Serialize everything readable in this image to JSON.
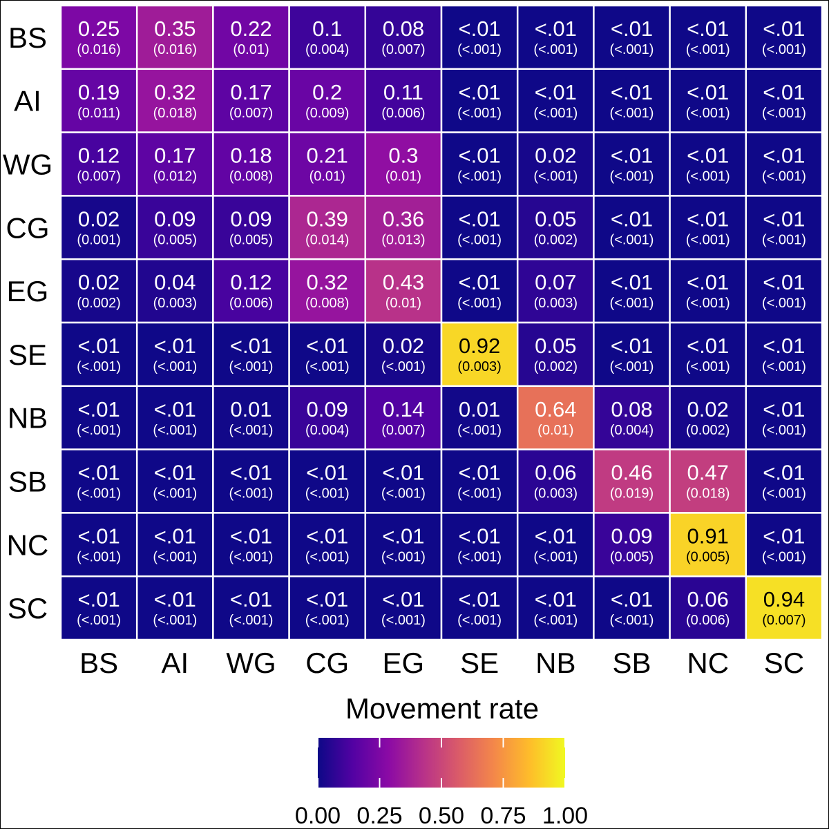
{
  "chart_data": {
    "type": "heatmap",
    "title": "",
    "xlabel": "",
    "ylabel": "",
    "x_categories": [
      "BS",
      "AI",
      "WG",
      "CG",
      "EG",
      "SE",
      "NB",
      "SB",
      "NC",
      "SC"
    ],
    "y_categories": [
      "BS",
      "AI",
      "WG",
      "CG",
      "EG",
      "SE",
      "NB",
      "SB",
      "NC",
      "SC"
    ],
    "values": [
      [
        0.25,
        0.35,
        0.22,
        0.1,
        0.08,
        0.005,
        0.005,
        0.005,
        0.005,
        0.005
      ],
      [
        0.19,
        0.32,
        0.17,
        0.2,
        0.11,
        0.005,
        0.005,
        0.005,
        0.005,
        0.005
      ],
      [
        0.12,
        0.17,
        0.18,
        0.21,
        0.3,
        0.005,
        0.02,
        0.005,
        0.005,
        0.005
      ],
      [
        0.02,
        0.09,
        0.09,
        0.39,
        0.36,
        0.005,
        0.05,
        0.005,
        0.005,
        0.005
      ],
      [
        0.02,
        0.04,
        0.12,
        0.32,
        0.43,
        0.005,
        0.07,
        0.005,
        0.005,
        0.005
      ],
      [
        0.005,
        0.005,
        0.005,
        0.005,
        0.02,
        0.92,
        0.05,
        0.005,
        0.005,
        0.005
      ],
      [
        0.005,
        0.005,
        0.01,
        0.09,
        0.14,
        0.01,
        0.64,
        0.08,
        0.02,
        0.005
      ],
      [
        0.005,
        0.005,
        0.005,
        0.005,
        0.005,
        0.005,
        0.06,
        0.46,
        0.47,
        0.005
      ],
      [
        0.005,
        0.005,
        0.005,
        0.005,
        0.005,
        0.005,
        0.005,
        0.09,
        0.91,
        0.005
      ],
      [
        0.005,
        0.005,
        0.005,
        0.005,
        0.005,
        0.005,
        0.005,
        0.005,
        0.06,
        0.94
      ]
    ],
    "value_labels": [
      [
        "0.25",
        "0.35",
        "0.22",
        "0.1",
        "0.08",
        "<.01",
        "<.01",
        "<.01",
        "<.01",
        "<.01"
      ],
      [
        "0.19",
        "0.32",
        "0.17",
        "0.2",
        "0.11",
        "<.01",
        "<.01",
        "<.01",
        "<.01",
        "<.01"
      ],
      [
        "0.12",
        "0.17",
        "0.18",
        "0.21",
        "0.3",
        "<.01",
        "0.02",
        "<.01",
        "<.01",
        "<.01"
      ],
      [
        "0.02",
        "0.09",
        "0.09",
        "0.39",
        "0.36",
        "<.01",
        "0.05",
        "<.01",
        "<.01",
        "<.01"
      ],
      [
        "0.02",
        "0.04",
        "0.12",
        "0.32",
        "0.43",
        "<.01",
        "0.07",
        "<.01",
        "<.01",
        "<.01"
      ],
      [
        "<.01",
        "<.01",
        "<.01",
        "<.01",
        "0.02",
        "0.92",
        "0.05",
        "<.01",
        "<.01",
        "<.01"
      ],
      [
        "<.01",
        "<.01",
        "0.01",
        "0.09",
        "0.14",
        "0.01",
        "0.64",
        "0.08",
        "0.02",
        "<.01"
      ],
      [
        "<.01",
        "<.01",
        "<.01",
        "<.01",
        "<.01",
        "<.01",
        "0.06",
        "0.46",
        "0.47",
        "<.01"
      ],
      [
        "<.01",
        "<.01",
        "<.01",
        "<.01",
        "<.01",
        "<.01",
        "<.01",
        "0.09",
        "0.91",
        "<.01"
      ],
      [
        "<.01",
        "<.01",
        "<.01",
        "<.01",
        "<.01",
        "<.01",
        "<.01",
        "<.01",
        "0.06",
        "0.94"
      ]
    ],
    "se_labels": [
      [
        "(0.016)",
        "(0.016)",
        "(0.01)",
        "(0.004)",
        "(0.007)",
        "(<.001)",
        "(<.001)",
        "(<.001)",
        "(<.001)",
        "(<.001)"
      ],
      [
        "(0.011)",
        "(0.018)",
        "(0.007)",
        "(0.009)",
        "(0.006)",
        "(<.001)",
        "(<.001)",
        "(<.001)",
        "(<.001)",
        "(<.001)"
      ],
      [
        "(0.007)",
        "(0.012)",
        "(0.008)",
        "(0.01)",
        "(0.01)",
        "(<.001)",
        "(<.001)",
        "(<.001)",
        "(<.001)",
        "(<.001)"
      ],
      [
        "(0.001)",
        "(0.005)",
        "(0.005)",
        "(0.014)",
        "(0.013)",
        "(<.001)",
        "(0.002)",
        "(<.001)",
        "(<.001)",
        "(<.001)"
      ],
      [
        "(0.002)",
        "(0.003)",
        "(0.006)",
        "(0.008)",
        "(0.01)",
        "(<.001)",
        "(0.003)",
        "(<.001)",
        "(<.001)",
        "(<.001)"
      ],
      [
        "(<.001)",
        "(<.001)",
        "(<.001)",
        "(<.001)",
        "(<.001)",
        "(0.003)",
        "(0.002)",
        "(<.001)",
        "(<.001)",
        "(<.001)"
      ],
      [
        "(<.001)",
        "(<.001)",
        "(<.001)",
        "(0.004)",
        "(0.007)",
        "(<.001)",
        "(0.01)",
        "(0.004)",
        "(0.002)",
        "(<.001)"
      ],
      [
        "(<.001)",
        "(<.001)",
        "(<.001)",
        "(<.001)",
        "(<.001)",
        "(<.001)",
        "(0.003)",
        "(0.019)",
        "(0.018)",
        "(<.001)"
      ],
      [
        "(<.001)",
        "(<.001)",
        "(<.001)",
        "(<.001)",
        "(<.001)",
        "(<.001)",
        "(<.001)",
        "(0.005)",
        "(0.005)",
        "(<.001)"
      ],
      [
        "(<.001)",
        "(<.001)",
        "(<.001)",
        "(<.001)",
        "(<.001)",
        "(<.001)",
        "(<.001)",
        "(<.001)",
        "(0.006)",
        "(0.007)"
      ]
    ],
    "legend": {
      "title": "Movement rate",
      "position": "bottom",
      "range": [
        0,
        1
      ],
      "ticks": [
        0,
        0.25,
        0.5,
        0.75,
        1
      ],
      "tick_labels": [
        "0.00",
        "0.25",
        "0.50",
        "0.75",
        "1.00"
      ],
      "colormap": "plasma",
      "color_stops": [
        "#0d0887",
        "#5302a3",
        "#8b0aa5",
        "#b83289",
        "#db5c68",
        "#f48849",
        "#febd2a",
        "#f0f921"
      ]
    },
    "grid": false
  }
}
